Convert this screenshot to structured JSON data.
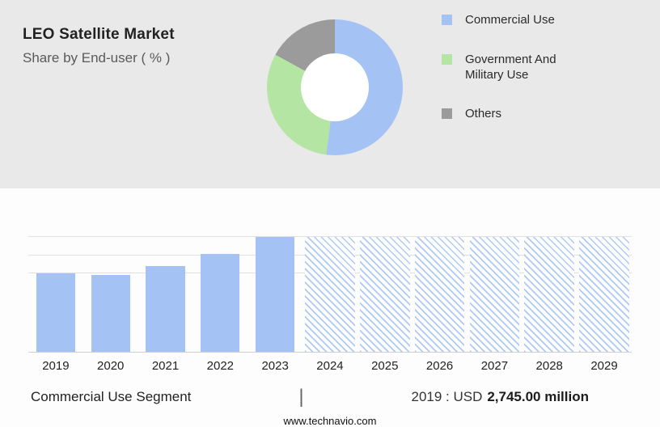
{
  "header": {
    "title": "LEO Satellite Market",
    "subtitle": "Share by End-user ( % )"
  },
  "legend": [
    {
      "label": "Commercial Use",
      "color": "#a4c2f4"
    },
    {
      "label": "Government And Military Use",
      "color": "#b4e5a2"
    },
    {
      "label": "Others",
      "color": "#9b9b9b"
    }
  ],
  "chart_data": [
    {
      "type": "pie",
      "title": "LEO Satellite Market - Share by End-user ( % )",
      "donut": true,
      "legend_position": "right",
      "slices": [
        {
          "label": "Commercial Use",
          "value": 52,
          "color": "#a4c2f4"
        },
        {
          "label": "Government And Military Use",
          "value": 31,
          "color": "#b4e5a2"
        },
        {
          "label": "Others",
          "value": 17,
          "color": "#9b9b9b"
        }
      ]
    },
    {
      "type": "bar",
      "categories": [
        "2019",
        "2020",
        "2021",
        "2022",
        "2023",
        "2024",
        "2025",
        "2026",
        "2027",
        "2028",
        "2029"
      ],
      "values_relative_pct": [
        68,
        67,
        75,
        85,
        100,
        100,
        100,
        100,
        100,
        100,
        100
      ],
      "forecast_from": "2024",
      "forecast_style": "hatched",
      "bar_color": "#a4c2f4",
      "known_value": {
        "year": "2019",
        "value_usd_million": 2745.0
      },
      "grid": true,
      "gridline_levels_pct": [
        100,
        84,
        68
      ],
      "xlabel": "",
      "ylabel": ""
    }
  ],
  "footer": {
    "segment": "Commercial Use Segment",
    "separator": "|",
    "value_prefix": "2019 : USD",
    "value_bold": "2,745.00 million",
    "website": "www.technavio.com"
  }
}
